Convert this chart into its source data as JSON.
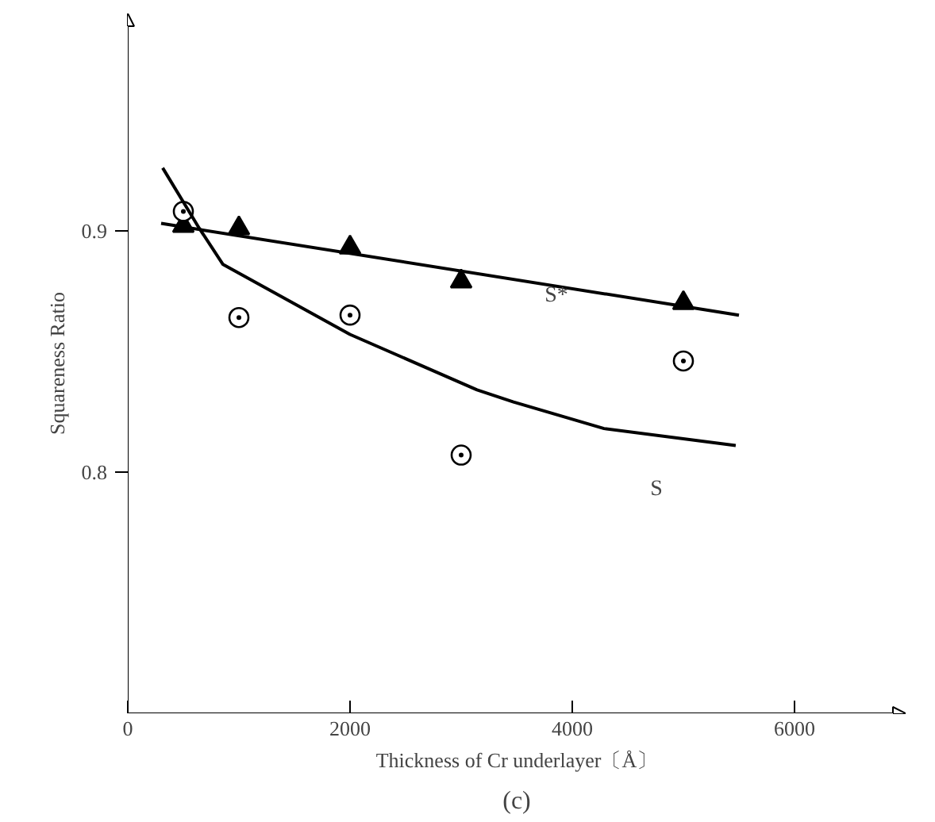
{
  "chart_data": {
    "type": "scatter",
    "xlabel": "Thickness of Cr underlayer〔Å〕",
    "ylabel": "Squareness Ratio",
    "xlim": [
      0,
      7000
    ],
    "ylim": [
      0.7,
      0.99
    ],
    "xticks": [
      0,
      2000,
      4000,
      6000
    ],
    "yticks": [
      0.8,
      0.9
    ],
    "grid": false,
    "series": [
      {
        "marker": "triangle",
        "color": "#000000",
        "x": [
          500,
          1000,
          2000,
          3000,
          5000
        ],
        "values": [
          0.902,
          0.901,
          0.893,
          0.879,
          0.87
        ]
      },
      {
        "marker": "circle",
        "color": "#000000",
        "x": [
          500,
          1000,
          2000,
          3000,
          5000
        ],
        "values": [
          0.908,
          0.864,
          0.865,
          0.807,
          0.846
        ]
      },
      {
        "type": "line",
        "name": "S*",
        "color": "#000000",
        "x": [
          300,
          5500
        ],
        "values": [
          0.903,
          0.865
        ]
      },
      {
        "type": "line",
        "name": "S",
        "color": "#000000",
        "x": [
          314,
          643,
          857,
          2000,
          3143,
          3471,
          4286,
          5471
        ],
        "values": [
          0.926,
          0.901,
          0.886,
          0.857,
          0.834,
          0.829,
          0.818,
          0.811
        ]
      }
    ],
    "annotations": [
      "(c)"
    ]
  }
}
